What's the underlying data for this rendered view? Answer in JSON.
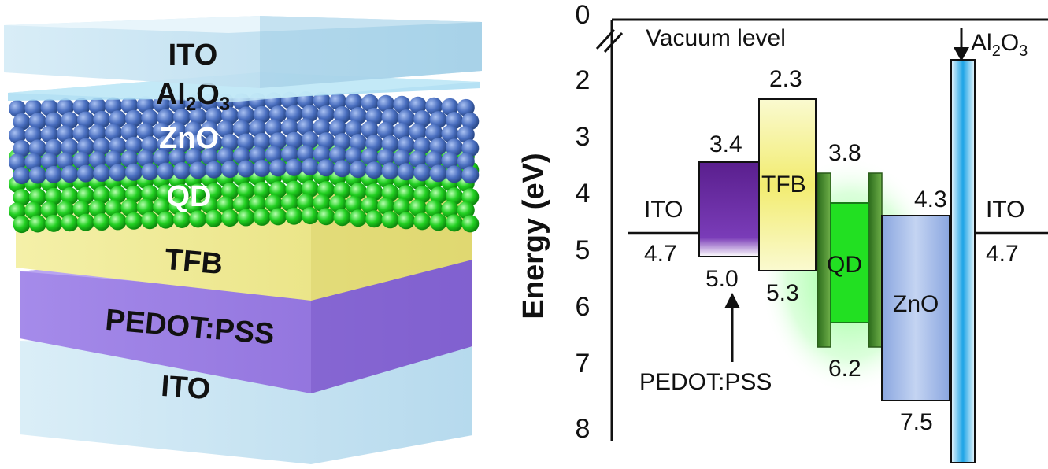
{
  "stack": {
    "layers": [
      {
        "key": "ito_top",
        "label": "ITO",
        "color": "#bfe0f0"
      },
      {
        "key": "al2o3",
        "label": "Al",
        "sub1": "2",
        "mid": "O",
        "sub2": "3",
        "color": "#7fc4e6"
      },
      {
        "key": "zno",
        "label": "ZnO",
        "color": "#4f73c4"
      },
      {
        "key": "qd",
        "label": "QD",
        "color": "#22d022"
      },
      {
        "key": "tfb",
        "label": "TFB",
        "color": "#f2ee9a"
      },
      {
        "key": "pedot",
        "label": "PEDOT:PSS",
        "color": "#9b7fe6"
      },
      {
        "key": "ito_bottom",
        "label": "ITO",
        "color": "#c9e6f4"
      }
    ]
  },
  "band_diagram": {
    "axis": {
      "title": "Energy (eV)",
      "ticks": [
        "0",
        "2",
        "3",
        "4",
        "5",
        "6",
        "7",
        "8"
      ],
      "vacuum_label": "Vacuum level"
    },
    "materials": {
      "ito_left": {
        "label": "ITO",
        "work_function": "4.7"
      },
      "pedot": {
        "label": "PEDOT:PSS",
        "top": "3.4",
        "bottom": "5.0",
        "color": "#6a2fa0"
      },
      "tfb": {
        "label": "TFB",
        "top": "2.3",
        "bottom": "5.3",
        "color": "#f5f08a"
      },
      "qd": {
        "label": "QD",
        "top": "3.8",
        "bottom": "6.2",
        "color": "#22dd22"
      },
      "zno": {
        "label": "ZnO",
        "top": "4.3",
        "bottom": "7.5",
        "color": "#9bb3e6"
      },
      "al2o3": {
        "label": "Al",
        "sub1": "2",
        "mid": "O",
        "sub2": "3",
        "color": "#22a8e8"
      },
      "ito_right": {
        "label": "ITO",
        "work_function": "4.7"
      }
    }
  }
}
